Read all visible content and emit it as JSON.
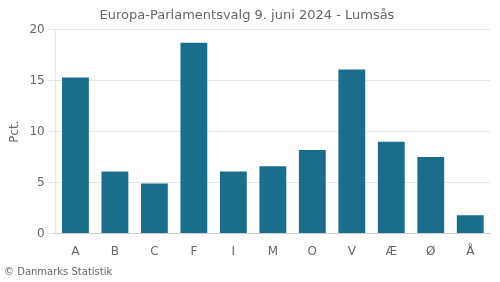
{
  "chart_data": {
    "type": "bar",
    "title": "Europa-Parlamentsvalg 9. juni 2024 - Lumsås",
    "categories": [
      "A",
      "B",
      "C",
      "F",
      "I",
      "M",
      "O",
      "V",
      "Æ",
      "Ø",
      "Å"
    ],
    "values": [
      15.3,
      6.1,
      4.9,
      18.7,
      6.1,
      6.6,
      8.2,
      16.1,
      9.0,
      7.5,
      1.8
    ],
    "color": "#1a6e8c",
    "ylabel": "Pct.",
    "ylim": [
      0,
      20
    ],
    "yticks": [
      0,
      5,
      10,
      15,
      20
    ],
    "grid": true,
    "footer": "© Danmarks Statistik"
  }
}
